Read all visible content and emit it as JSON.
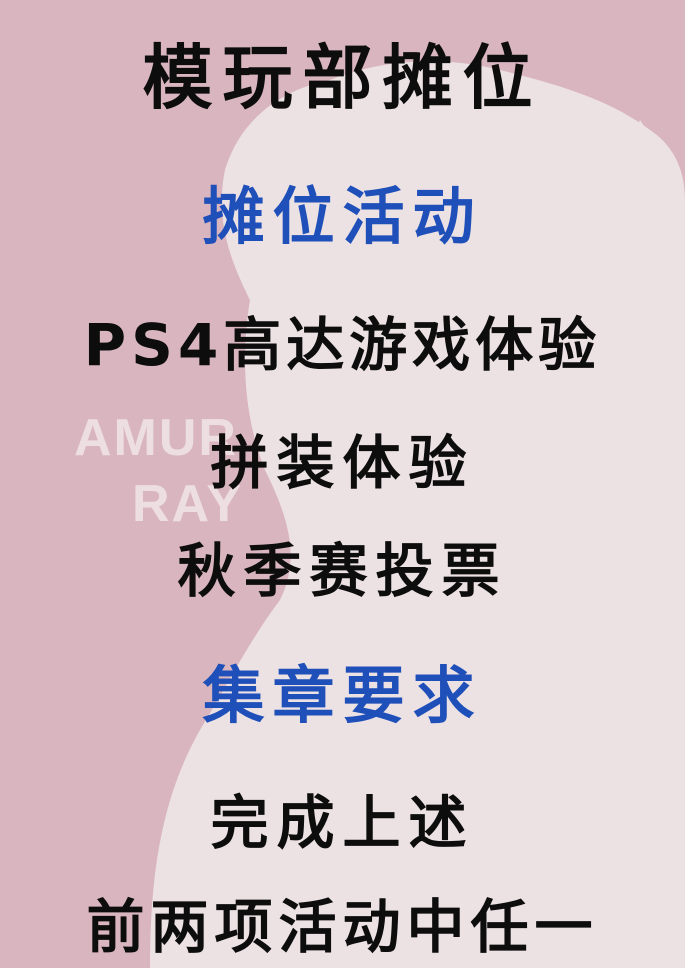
{
  "poster": {
    "title": "模玩部摊位",
    "activity_heading": "摊位活动",
    "activities": [
      "PS4高达游戏体验",
      "拼装体验",
      "秋季赛投票"
    ],
    "stamp_heading": "集章要求",
    "requirements": [
      "完成上述",
      "前两项活动中任一"
    ],
    "background_text": [
      "AMUR",
      "RAY"
    ]
  },
  "colors": {
    "background": "#d9b6bf",
    "silhouette": "#ece2e4",
    "text": "#0d0d0d",
    "heading": "#1f4fb8"
  }
}
